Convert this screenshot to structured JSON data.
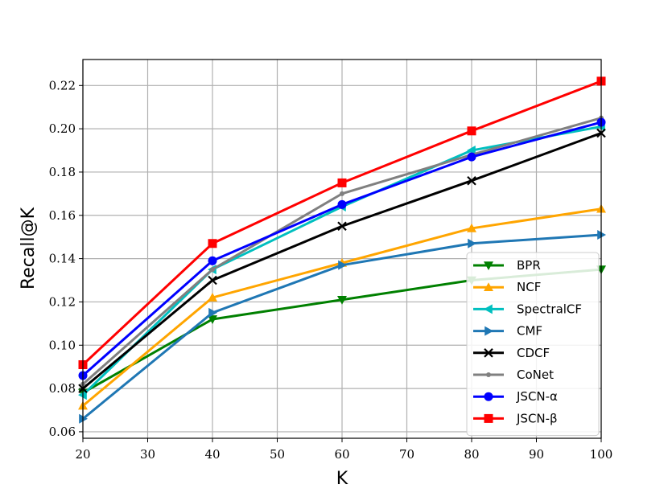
{
  "chart_data": {
    "type": "line",
    "title": "",
    "xlabel": "K",
    "ylabel": "Recall@K",
    "x": [
      20,
      40,
      60,
      80,
      100
    ],
    "xlim": [
      20,
      100
    ],
    "ylim": [
      0.057,
      0.232
    ],
    "xticks": [
      "20",
      "30",
      "40",
      "50",
      "60",
      "70",
      "80",
      "90",
      "100"
    ],
    "yticks": [
      "0.06",
      "0.08",
      "0.10",
      "0.12",
      "0.14",
      "0.16",
      "0.18",
      "0.20",
      "0.22"
    ],
    "grid": true,
    "legend_position": "lower-right",
    "series": [
      {
        "name": "BPR",
        "color": "#008000",
        "marker": "triangle-down",
        "values": [
          0.078,
          0.112,
          0.121,
          0.13,
          0.135
        ]
      },
      {
        "name": "NCF",
        "color": "#ffa500",
        "marker": "triangle-up",
        "values": [
          0.072,
          0.122,
          0.138,
          0.154,
          0.163
        ]
      },
      {
        "name": "SpectralCF",
        "color": "#00bfbf",
        "marker": "triangle-left",
        "values": [
          0.077,
          0.135,
          0.164,
          0.19,
          0.201
        ]
      },
      {
        "name": "CMF",
        "color": "#1f77b4",
        "marker": "triangle-right",
        "values": [
          0.066,
          0.115,
          0.137,
          0.147,
          0.151
        ]
      },
      {
        "name": "CDCF",
        "color": "#000000",
        "marker": "x",
        "values": [
          0.08,
          0.13,
          0.155,
          0.176,
          0.198
        ]
      },
      {
        "name": "CoNet",
        "color": "#808080",
        "marker": "dot",
        "values": [
          0.082,
          0.135,
          0.17,
          0.188,
          0.205
        ]
      },
      {
        "name": "JSCN-α",
        "color": "#0000ff",
        "marker": "circle",
        "values": [
          0.086,
          0.139,
          0.165,
          0.187,
          0.203
        ]
      },
      {
        "name": "JSCN-β",
        "color": "#ff0000",
        "marker": "square",
        "values": [
          0.091,
          0.147,
          0.175,
          0.199,
          0.222
        ]
      }
    ]
  }
}
